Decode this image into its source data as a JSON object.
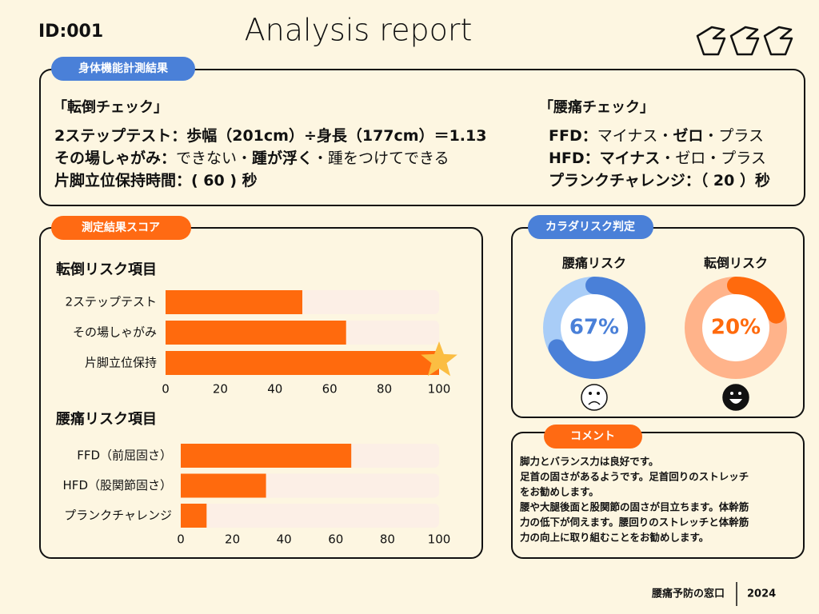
{
  "header": {
    "id": "ID:001",
    "title": "Analysis report"
  },
  "body_function": {
    "label": "身体機能計測結果",
    "fall_check": {
      "heading": "「転倒チェック」",
      "lines": [
        [
          {
            "text": "2ステップテスト：歩幅（201cm）÷身長（177cm）＝1.13",
            "bold": true
          }
        ],
        [
          {
            "text": "その場しゃがみ：",
            "bold": true
          },
          {
            "text": "できない・",
            "bold": false
          },
          {
            "text": "踵が浮く",
            "bold": true
          },
          {
            "text": "・踵をつけてできる",
            "bold": false
          }
        ],
        [
          {
            "text": "片脚立位保持時間：( 60 ) 秒",
            "bold": true
          }
        ]
      ]
    },
    "back_check": {
      "heading": "「腰痛チェック」",
      "lines": [
        [
          {
            "text": "FFD：",
            "bold": true
          },
          {
            "text": "マイナス・",
            "bold": false
          },
          {
            "text": "ゼロ",
            "bold": true
          },
          {
            "text": "・プラス",
            "bold": false
          }
        ],
        [
          {
            "text": "HFD：",
            "bold": true
          },
          {
            "text": "マイナス",
            "bold": true
          },
          {
            "text": "・ゼロ・プラス",
            "bold": false
          }
        ],
        [
          {
            "text": "プランクチャレンジ：（ 20 ）秒",
            "bold": true
          }
        ]
      ]
    }
  },
  "score": {
    "label": "測定結果スコア",
    "charts": [
      {
        "type": "bar",
        "title": "転倒リスク項目",
        "categories": [
          "2ステップテスト",
          "その場しゃがみ",
          "片脚立位保持"
        ],
        "values": [
          50,
          66,
          100
        ],
        "xlim": [
          0,
          100
        ],
        "xticks": [
          0,
          20,
          40,
          60,
          80,
          100
        ],
        "color": "#ff6a0d",
        "track_color": "#fcefe6"
      },
      {
        "type": "bar",
        "title": "腰痛リスク項目",
        "categories": [
          "FFD（前屈固さ）",
          "HFD（股関節固さ）",
          "プランクチャレンジ"
        ],
        "values": [
          66,
          33,
          10
        ],
        "xlim": [
          0,
          100
        ],
        "xticks": [
          0,
          20,
          40,
          60,
          80,
          100
        ],
        "color": "#ff6a0d",
        "track_color": "#fcefe6"
      }
    ]
  },
  "risk": {
    "label": "カラダリスク判定",
    "charts": [
      {
        "type": "donut",
        "title": "腰痛リスク",
        "values": [
          67
        ],
        "value_labels": [
          "67%"
        ],
        "color": "#4a80d8",
        "track_color": "#a9cdf7",
        "face": "sad"
      },
      {
        "type": "donut",
        "title": "転倒リスク",
        "values": [
          20
        ],
        "value_labels": [
          "20%"
        ],
        "color": "#ff6a0d",
        "track_color": "#ffb38a",
        "face": "happy"
      }
    ]
  },
  "comment": {
    "label": "コメント",
    "lines": [
      "脚力とバランス力は良好です。",
      "足首の固さがあるようです。足首回りのストレッチ",
      "をお勧めします。",
      "腰や大腿後面と股関節の固さが目立ちます。体幹筋",
      "力の低下が伺えます。腰回りのストレッチと体幹筋",
      "力の向上に取り組むことをお勧めします。"
    ]
  },
  "footer": {
    "org": "腰痛予防の窓口",
    "year": "2024"
  }
}
